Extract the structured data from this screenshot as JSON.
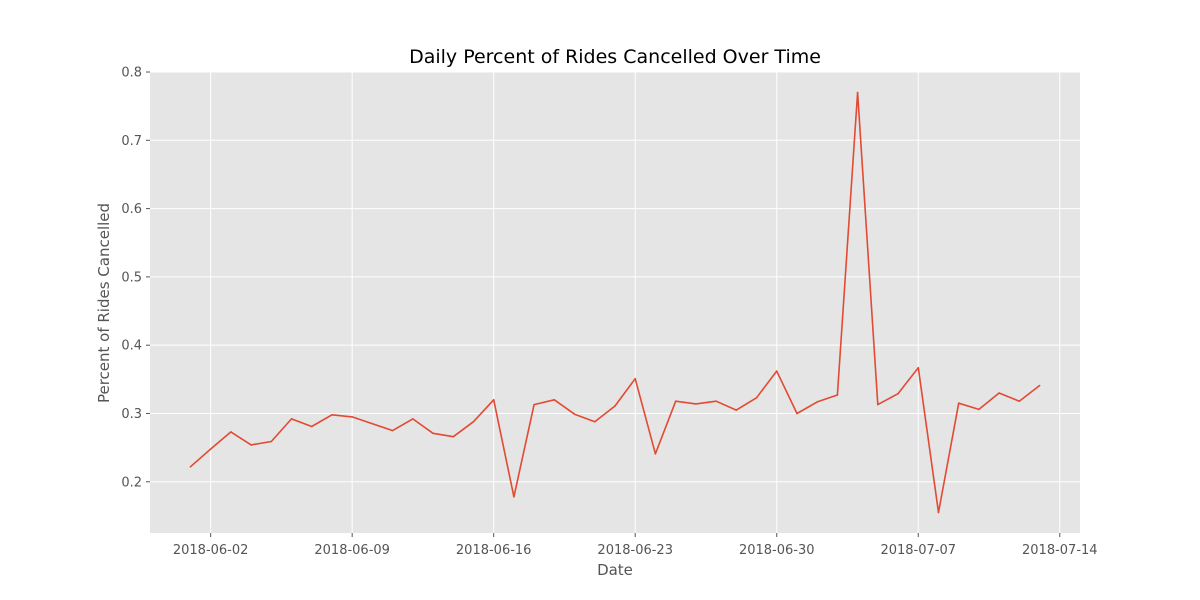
{
  "chart_data": {
    "type": "line",
    "title": "Daily Percent of Rides Cancelled Over Time",
    "xlabel": "Date",
    "ylabel": "Percent of Rides Cancelled",
    "x_start": "2018-06-01",
    "x_tick_labels": [
      "2018-06-02",
      "2018-06-09",
      "2018-06-16",
      "2018-06-23",
      "2018-06-30",
      "2018-07-07",
      "2018-07-14"
    ],
    "x_tick_day_offsets": [
      1,
      8,
      15,
      22,
      29,
      36,
      43
    ],
    "xlim_day_offsets": [
      -2,
      44
    ],
    "y_ticks": [
      0.2,
      0.3,
      0.4,
      0.5,
      0.6,
      0.7,
      0.8
    ],
    "y_tick_labels": [
      "0.2",
      "0.3",
      "0.4",
      "0.5",
      "0.6",
      "0.7",
      "0.8"
    ],
    "ylim": [
      0.125,
      0.8
    ],
    "grid": true,
    "series": [
      {
        "name": "cancelled",
        "color": "#e24a33",
        "x_day_offsets": [
          0,
          1,
          2,
          3,
          4,
          5,
          6,
          7,
          8,
          9,
          10,
          11,
          12,
          13,
          14,
          15,
          16,
          17,
          18,
          19,
          20,
          21,
          22,
          23,
          24,
          25,
          26,
          27,
          28,
          29,
          30,
          31,
          32,
          33,
          34,
          35,
          36,
          37,
          38,
          39,
          40,
          41,
          42
        ],
        "values": [
          0.222,
          0.248,
          0.273,
          0.254,
          0.259,
          0.292,
          0.281,
          0.298,
          0.295,
          0.285,
          0.275,
          0.292,
          0.271,
          0.266,
          0.288,
          0.32,
          0.178,
          0.313,
          0.32,
          0.299,
          0.288,
          0.311,
          0.351,
          0.241,
          0.318,
          0.314,
          0.318,
          0.305,
          0.323,
          0.362,
          0.3,
          0.317,
          0.327,
          0.77,
          0.313,
          0.329,
          0.367,
          0.155,
          0.315,
          0.306,
          0.33,
          0.318,
          0.341
        ]
      }
    ],
    "colors": {
      "background": "#e5e5e5",
      "grid": "#ffffff"
    }
  }
}
